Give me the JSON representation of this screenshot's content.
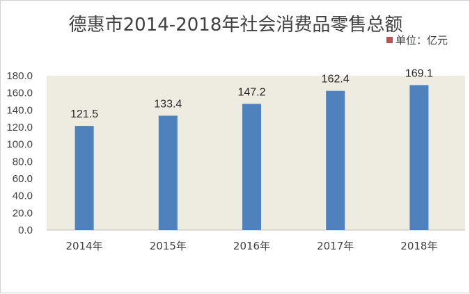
{
  "chart_data": {
    "type": "bar",
    "title": "德惠市2014-2018年社会消费品零售总额",
    "unit_legend": "单位：亿元",
    "categories": [
      "2014年",
      "2015年",
      "2016年",
      "2017年",
      "2018年"
    ],
    "series": [
      {
        "values": [
          121.5,
          133.4,
          147.2,
          162.4,
          169.1
        ]
      }
    ],
    "data_labels": [
      "121.5",
      "133.4",
      "147.2",
      "162.4",
      "169.1"
    ],
    "y_ticks": [
      "0.0",
      "20.0",
      "40.0",
      "60.0",
      "80.0",
      "100.0",
      "120.0",
      "140.0",
      "160.0",
      "180.0"
    ],
    "ylim": [
      0,
      180
    ],
    "grid": false,
    "legend_position": "top-right",
    "colors": {
      "bar": "#4f81bd",
      "plot_background": "#eeece1",
      "legend_swatch": "#c0504d",
      "axis_line": "#bfbfbf"
    }
  }
}
